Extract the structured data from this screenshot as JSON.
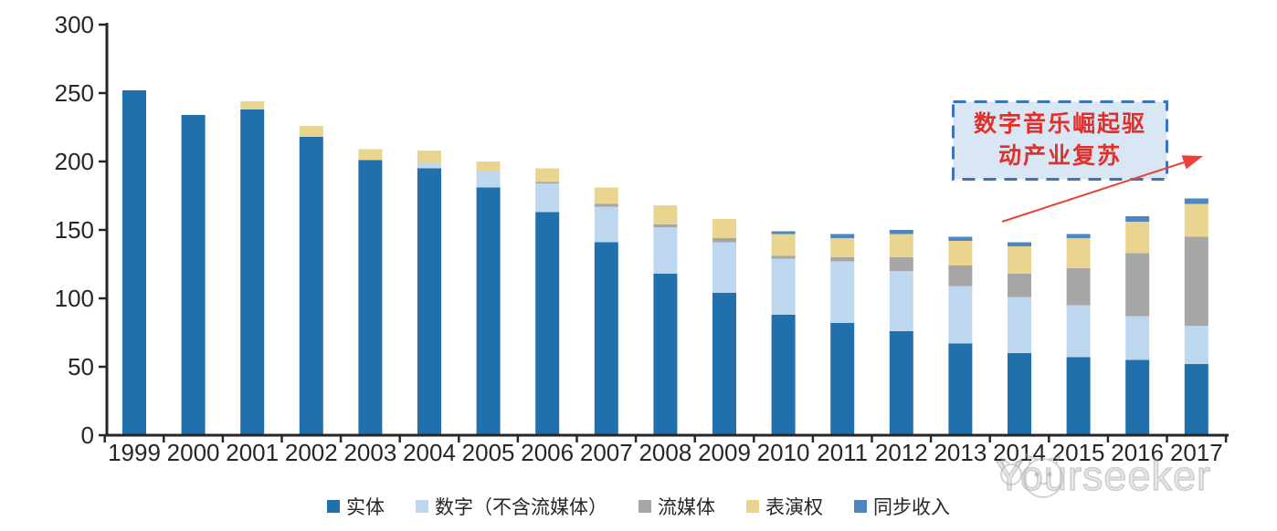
{
  "chart_data": {
    "type": "bar",
    "stacked": true,
    "categories": [
      "1999",
      "2000",
      "2001",
      "2002",
      "2003",
      "2004",
      "2005",
      "2006",
      "2007",
      "2008",
      "2009",
      "2010",
      "2011",
      "2012",
      "2013",
      "2014",
      "2015",
      "2016",
      "2017"
    ],
    "series": [
      {
        "key": "physical",
        "name": "实体",
        "color": "#2170AC",
        "values": [
          252,
          234,
          238,
          218,
          201,
          195,
          181,
          163,
          141,
          118,
          104,
          88,
          82,
          76,
          67,
          60,
          57,
          55,
          52
        ]
      },
      {
        "key": "digital",
        "name": "数字（不含流媒体）",
        "color": "#BDD7EE",
        "values": [
          0,
          0,
          0,
          0,
          0,
          4,
          12,
          21,
          26,
          34,
          37,
          41,
          45,
          44,
          42,
          41,
          38,
          32,
          28
        ]
      },
      {
        "key": "streaming",
        "name": "流媒体",
        "color": "#A6A6A6",
        "values": [
          0,
          0,
          0,
          0,
          0,
          0,
          0,
          1,
          2,
          2,
          3,
          2,
          3,
          10,
          15,
          17,
          27,
          46,
          65
        ]
      },
      {
        "key": "performance",
        "name": "表演权",
        "color": "#E9D590",
        "values": [
          0,
          0,
          6,
          8,
          8,
          9,
          7,
          10,
          12,
          14,
          14,
          16,
          14,
          17,
          18,
          20,
          22,
          23,
          24
        ]
      },
      {
        "key": "sync",
        "name": "同步收入",
        "color": "#4E86C0",
        "values": [
          0,
          0,
          0,
          0,
          0,
          0,
          0,
          0,
          0,
          0,
          0,
          2,
          3,
          3,
          3,
          3,
          3,
          4,
          4
        ]
      }
    ],
    "yticks": [
      0,
      50,
      100,
      150,
      200,
      250,
      300
    ],
    "ylim": [
      0,
      300
    ],
    "grid": false,
    "legend_position": "bottom",
    "axis_color": "#262626",
    "tick_label_color": "#262626"
  },
  "annotation": {
    "line1": "数字音乐崛起驱",
    "line2": "动产业复苏",
    "text_color": "#E0302C",
    "border_color": "#3C74B9",
    "fill_color": "#D9E6F4",
    "arrow_color": "#EC4038"
  },
  "watermark": {
    "text": "Yourseeker"
  }
}
